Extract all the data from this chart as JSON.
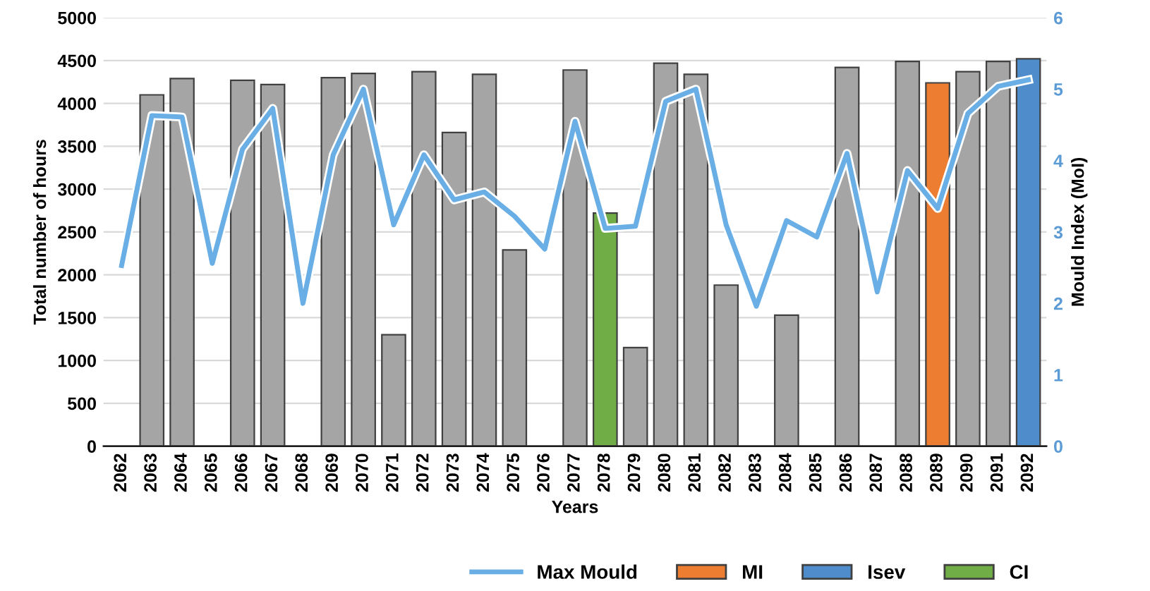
{
  "chart_data": {
    "type": "bar",
    "xlabel": "Years",
    "ylabel": "Total number of hours",
    "y2label": "Mould Index (MoI)",
    "categories": [
      "2062",
      "2063",
      "2064",
      "2065",
      "2066",
      "2067",
      "2068",
      "2069",
      "2070",
      "2071",
      "2072",
      "2073",
      "2074",
      "2075",
      "2076",
      "2077",
      "2078",
      "2079",
      "2080",
      "2081",
      "2082",
      "2083",
      "2084",
      "2085",
      "2086",
      "2087",
      "2088",
      "2089",
      "2090",
      "2091",
      "2092"
    ],
    "series": [
      {
        "color": "#a5a5a5",
        "values": [
          null,
          4100,
          4290,
          null,
          4270,
          4220,
          null,
          4300,
          4350,
          1300,
          4370,
          3660,
          4340,
          2290,
          null,
          4390,
          null,
          1150,
          4470,
          4340,
          1880,
          null,
          1530,
          null,
          4420,
          null,
          4490,
          null,
          4370,
          4490,
          null
        ]
      },
      {
        "type": "line",
        "axis": "y2",
        "name": "Max Mould",
        "color": "#6aaee6",
        "values": [
          2.53,
          4.63,
          4.61,
          2.56,
          4.16,
          4.73,
          2.0,
          4.08,
          5.0,
          3.1,
          4.08,
          3.45,
          3.56,
          3.22,
          2.76,
          4.55,
          3.05,
          3.08,
          4.83,
          5.0,
          3.1,
          1.96,
          3.16,
          2.93,
          4.1,
          2.16,
          3.86,
          3.33,
          4.66,
          5.04,
          5.13
        ]
      },
      {
        "name": "MI",
        "color": "#ed7d31",
        "values": [
          null,
          null,
          null,
          null,
          null,
          null,
          null,
          null,
          null,
          null,
          null,
          null,
          null,
          null,
          null,
          null,
          null,
          null,
          null,
          null,
          null,
          null,
          null,
          null,
          null,
          null,
          null,
          4240,
          null,
          null,
          null
        ]
      },
      {
        "name": "Isev",
        "color": "#4e8ccb",
        "values": [
          null,
          null,
          null,
          null,
          null,
          null,
          null,
          null,
          null,
          null,
          null,
          null,
          null,
          null,
          null,
          null,
          null,
          null,
          null,
          null,
          null,
          null,
          null,
          null,
          null,
          null,
          null,
          null,
          null,
          null,
          4520
        ]
      },
      {
        "name": "CI",
        "color": "#70ad47",
        "values": [
          null,
          null,
          null,
          null,
          null,
          null,
          null,
          null,
          null,
          null,
          null,
          null,
          null,
          null,
          null,
          null,
          2720,
          null,
          null,
          null,
          null,
          null,
          null,
          null,
          null,
          null,
          null,
          null,
          null,
          null,
          null
        ]
      }
    ],
    "ylim": [
      0,
      5000
    ],
    "yticks": [
      0,
      500,
      1000,
      1500,
      2000,
      2500,
      3000,
      3500,
      4000,
      4500,
      5000
    ],
    "y2lim": [
      0,
      6
    ],
    "y2ticks": [
      0,
      1,
      2,
      3,
      4,
      5,
      6
    ],
    "grid": "y",
    "legend": "bottom right"
  }
}
